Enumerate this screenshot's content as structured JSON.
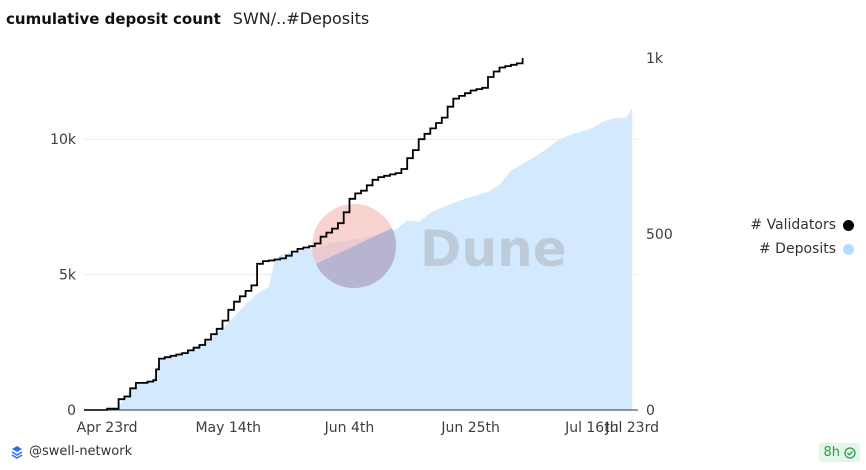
{
  "header": {
    "title": "cumulative deposit count",
    "subtitle": "SWN/..#Deposits"
  },
  "legend": {
    "items": [
      {
        "label": "# Validators",
        "color": "#000000"
      },
      {
        "label": "# Deposits",
        "color": "#b3dcff"
      }
    ]
  },
  "footer": {
    "account": "@swell-network",
    "freshness": "8h"
  },
  "watermark": {
    "text": "Dune"
  },
  "chart_data": {
    "type": "area+line",
    "title": "cumulative deposit count",
    "x_ticks": [
      "Apr 23rd",
      "May 14th",
      "Jun 4th",
      "Jun 25th",
      "Jul 16th",
      "Jul 23rd"
    ],
    "x_tick_days": [
      0,
      21,
      42,
      63,
      84,
      91
    ],
    "x_range_days": [
      -4,
      92
    ],
    "left_axis": {
      "ticks": [
        "0",
        "5k",
        "10k"
      ],
      "tick_values": [
        0,
        5000,
        10000
      ],
      "range": [
        0,
        13000
      ]
    },
    "right_axis": {
      "ticks": [
        "0",
        "500",
        "1k"
      ],
      "tick_values": [
        0,
        500,
        1000
      ],
      "range": [
        0,
        1000
      ]
    },
    "series": [
      {
        "name": "# Deposits",
        "axis": "right",
        "kind": "area",
        "color": "#d3eafe",
        "points": [
          [
            -4,
            0
          ],
          [
            0,
            2
          ],
          [
            2,
            8
          ],
          [
            4,
            60
          ],
          [
            6,
            80
          ],
          [
            8,
            85
          ],
          [
            9,
            140
          ],
          [
            10,
            150
          ],
          [
            12,
            160
          ],
          [
            14,
            170
          ],
          [
            16,
            185
          ],
          [
            18,
            205
          ],
          [
            20,
            230
          ],
          [
            22,
            265
          ],
          [
            24,
            300
          ],
          [
            26,
            330
          ],
          [
            28,
            350
          ],
          [
            29,
            420
          ],
          [
            30,
            440
          ],
          [
            32,
            450
          ],
          [
            34,
            455
          ],
          [
            36,
            460
          ],
          [
            38,
            470
          ],
          [
            40,
            478
          ],
          [
            42,
            482
          ],
          [
            44,
            488
          ],
          [
            46,
            495
          ],
          [
            48,
            505
          ],
          [
            50,
            512
          ],
          [
            52,
            538
          ],
          [
            54,
            535
          ],
          [
            56,
            560
          ],
          [
            58,
            575
          ],
          [
            60,
            588
          ],
          [
            62,
            600
          ],
          [
            64,
            610
          ],
          [
            66,
            620
          ],
          [
            68,
            640
          ],
          [
            70,
            680
          ],
          [
            72,
            700
          ],
          [
            74,
            718
          ],
          [
            76,
            740
          ],
          [
            78,
            765
          ],
          [
            80,
            780
          ],
          [
            82,
            790
          ],
          [
            84,
            800
          ],
          [
            86,
            820
          ],
          [
            88,
            829
          ],
          [
            90,
            831
          ],
          [
            91,
            859
          ]
        ]
      },
      {
        "name": "# Validators",
        "axis": "left",
        "kind": "line",
        "color": "#000000",
        "points": [
          [
            -4,
            0
          ],
          [
            0,
            50
          ],
          [
            1,
            50
          ],
          [
            2,
            400
          ],
          [
            3,
            500
          ],
          [
            4,
            800
          ],
          [
            5,
            1000
          ],
          [
            6,
            1000
          ],
          [
            7,
            1050
          ],
          [
            8,
            1100
          ],
          [
            8.5,
            1500
          ],
          [
            9,
            1900
          ],
          [
            10,
            1950
          ],
          [
            11,
            2000
          ],
          [
            12,
            2050
          ],
          [
            13,
            2100
          ],
          [
            14,
            2200
          ],
          [
            15,
            2300
          ],
          [
            16,
            2400
          ],
          [
            17,
            2600
          ],
          [
            18,
            2800
          ],
          [
            19,
            3000
          ],
          [
            20,
            3300
          ],
          [
            21,
            3700
          ],
          [
            22,
            4000
          ],
          [
            23,
            4200
          ],
          [
            24,
            4400
          ],
          [
            25,
            4600
          ],
          [
            26,
            5400
          ],
          [
            27,
            5500
          ],
          [
            28,
            5520
          ],
          [
            29,
            5560
          ],
          [
            30,
            5600
          ],
          [
            31,
            5700
          ],
          [
            32,
            5850
          ],
          [
            33,
            5950
          ],
          [
            34,
            6000
          ],
          [
            35,
            6050
          ],
          [
            36,
            6150
          ],
          [
            37,
            6400
          ],
          [
            38,
            6550
          ],
          [
            39,
            6700
          ],
          [
            40,
            6900
          ],
          [
            41,
            7300
          ],
          [
            42,
            7800
          ],
          [
            43,
            8000
          ],
          [
            44,
            8100
          ],
          [
            45,
            8300
          ],
          [
            46,
            8500
          ],
          [
            47,
            8600
          ],
          [
            48,
            8650
          ],
          [
            49,
            8700
          ],
          [
            50,
            8750
          ],
          [
            51,
            8900
          ],
          [
            52,
            9300
          ],
          [
            53,
            9600
          ],
          [
            54,
            10000
          ],
          [
            55,
            10200
          ],
          [
            56,
            10400
          ],
          [
            57,
            10600
          ],
          [
            58,
            10800
          ],
          [
            59,
            11200
          ],
          [
            60,
            11500
          ],
          [
            61,
            11600
          ],
          [
            62,
            11700
          ],
          [
            63,
            11800
          ],
          [
            64,
            11850
          ],
          [
            65,
            11900
          ],
          [
            66,
            12300
          ],
          [
            67,
            12500
          ],
          [
            68,
            12650
          ],
          [
            69,
            12700
          ],
          [
            70,
            12750
          ],
          [
            71,
            12800
          ],
          [
            72,
            13000
          ]
        ]
      }
    ]
  }
}
